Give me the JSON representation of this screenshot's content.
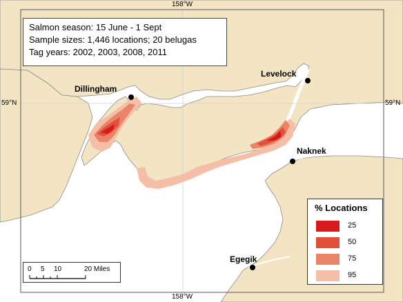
{
  "info": {
    "line1": "Salmon season:  15 June - 1 Sept",
    "line2": "Sample sizes:  1,446 locations; 20 belugas",
    "line3": "Tag years: 2002, 2003, 2008, 2011"
  },
  "graticule": {
    "lon_top": "158°W",
    "lon_bottom": "158°W",
    "lat_left": "59°N",
    "lat_right": "59°N"
  },
  "places": {
    "dillingham": "Dillingham",
    "levelock": "Levelock",
    "naknek": "Naknek",
    "egegik": "Egegik"
  },
  "legend": {
    "title": "% Locations",
    "items": [
      {
        "label": "25",
        "color": "#d7191c"
      },
      {
        "label": "50",
        "color": "#e0503a"
      },
      {
        "label": "75",
        "color": "#ea8468"
      },
      {
        "label": "95",
        "color": "#f4bfa6"
      }
    ]
  },
  "scalebar": {
    "ticks": [
      "0",
      "5",
      "10",
      "20 Miles"
    ]
  },
  "colors": {
    "land": "#f3e4c4",
    "water": "#ffffff",
    "coast": "#8a8a8a"
  }
}
